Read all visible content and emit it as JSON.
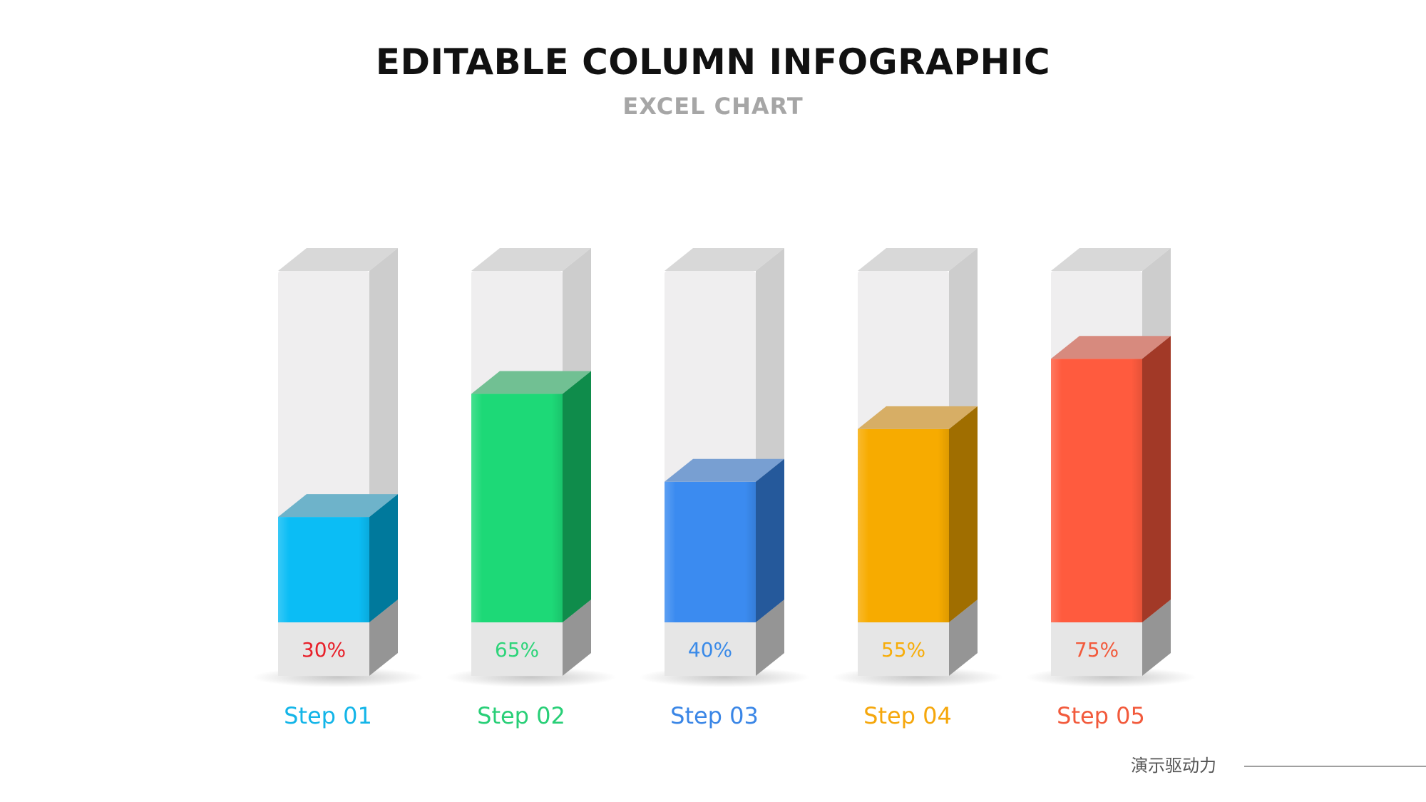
{
  "chart_data": {
    "type": "bar",
    "title": "EDITABLE COLUMN INFOGRAPHIC",
    "subtitle": "EXCEL CHART",
    "ylim": [
      0,
      100
    ],
    "grid": false,
    "categories": [
      "Step 01",
      "Step 02",
      "Step 03",
      "Step 04",
      "Step 05"
    ],
    "values": [
      30,
      65,
      40,
      55,
      75
    ],
    "value_labels": [
      "30%",
      "65%",
      "40%",
      "55%",
      "75%"
    ],
    "colors": {
      "front": [
        "#0bbdf5",
        "#1dd977",
        "#3b8bf0",
        "#f7ab00",
        "#ff5b3e"
      ],
      "side": [
        "#00799c",
        "#0f8c4b",
        "#25599b",
        "#a06e00",
        "#a23927"
      ],
      "top": [
        "#6eb3ca",
        "#71c093",
        "#789fd2",
        "#d7ae65",
        "#d78a7e"
      ],
      "value_text": [
        "#e8202a",
        "#2ed47a",
        "#3a8ae8",
        "#f7ad0a",
        "#f25a3c"
      ],
      "category_text": [
        "#13b5e8",
        "#28cf77",
        "#3a86e6",
        "#f5a70c",
        "#f25a3c"
      ],
      "glass_front": "#efeeef",
      "glass_side": "#cdcdcd",
      "glass_top": "#d8d8d8",
      "base_front": "#e6e6e6",
      "base_side": "#959595"
    }
  },
  "footer": {
    "brand": "演示驱动力"
  }
}
